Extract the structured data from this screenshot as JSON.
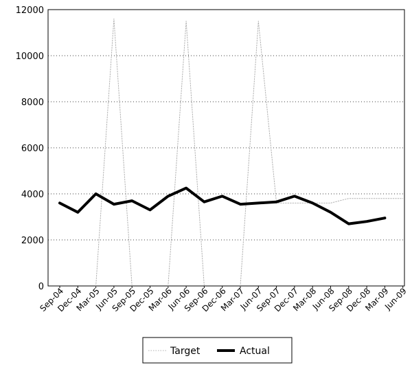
{
  "chart_data": {
    "type": "line",
    "title": "",
    "xlabel": "",
    "ylabel": "",
    "ylim": [
      0,
      12000
    ],
    "yticks": [
      0,
      2000,
      4000,
      6000,
      8000,
      10000,
      12000
    ],
    "grid": {
      "horizontal": true,
      "style": "dotted"
    },
    "legend_position": "bottom-center",
    "categories": [
      "Sep-04",
      "Dec-04",
      "Mar-05",
      "Jun-05",
      "Sep-05",
      "Dec-05",
      "Mar-06",
      "Jun-06",
      "Sep-06",
      "Dec-06",
      "Mar-07",
      "Jun-07",
      "Sep-07",
      "Dec-07",
      "Mar-08",
      "Jun-08",
      "Sep-08",
      "Dec-08",
      "Mar-09",
      "Jun-09"
    ],
    "series": [
      {
        "name": "Target",
        "color": "#b0b0b0",
        "style": "dotted",
        "values": [
          null,
          null,
          0,
          11600,
          0,
          null,
          0,
          11500,
          0,
          null,
          0,
          11500,
          3600,
          3600,
          3600,
          3600,
          3800,
          3800,
          3800,
          3800
        ]
      },
      {
        "name": "Actual",
        "color": "#000000",
        "style": "solid",
        "values": [
          3600,
          3200,
          4000,
          3550,
          3700,
          3300,
          3900,
          4250,
          3650,
          3900,
          3550,
          3600,
          3650,
          3900,
          3600,
          3200,
          2700,
          2800,
          2950,
          null
        ]
      }
    ]
  }
}
